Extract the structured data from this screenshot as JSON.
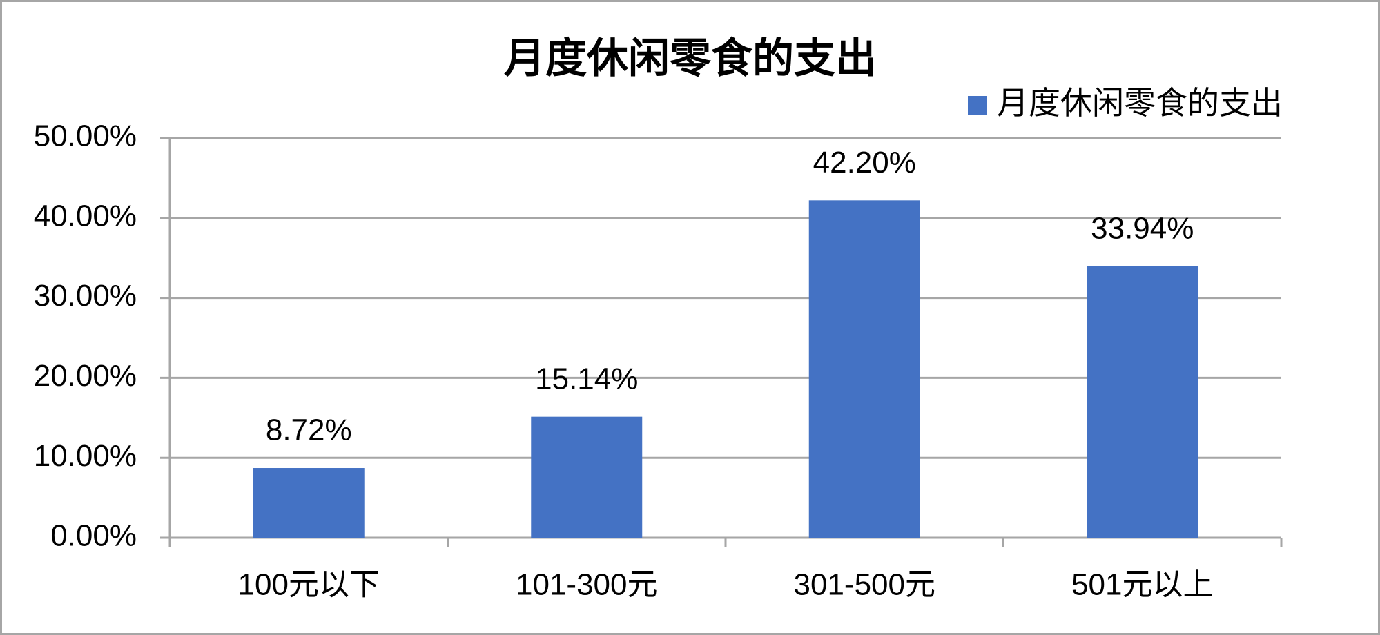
{
  "chart_data": {
    "type": "bar",
    "title": "月度休闲零食的支出",
    "categories": [
      "100元以下",
      "101-300元",
      "301-500元",
      "501元以上"
    ],
    "series": [
      {
        "name": "月度休闲零食的支出",
        "color": "#4472c4",
        "values": [
          8.72,
          15.14,
          42.2,
          33.94
        ],
        "value_labels": [
          "8.72%",
          "15.14%",
          "42.20%",
          "33.94%"
        ]
      }
    ],
    "ylim": [
      0,
      50
    ],
    "yticks": [
      {
        "value": 0,
        "label": "0.00%"
      },
      {
        "value": 10,
        "label": "10.00%"
      },
      {
        "value": 20,
        "label": "20.00%"
      },
      {
        "value": 30,
        "label": "30.00%"
      },
      {
        "value": 40,
        "label": "40.00%"
      },
      {
        "value": 50,
        "label": "50.00%"
      }
    ],
    "grid": true,
    "legend": "top-right"
  }
}
